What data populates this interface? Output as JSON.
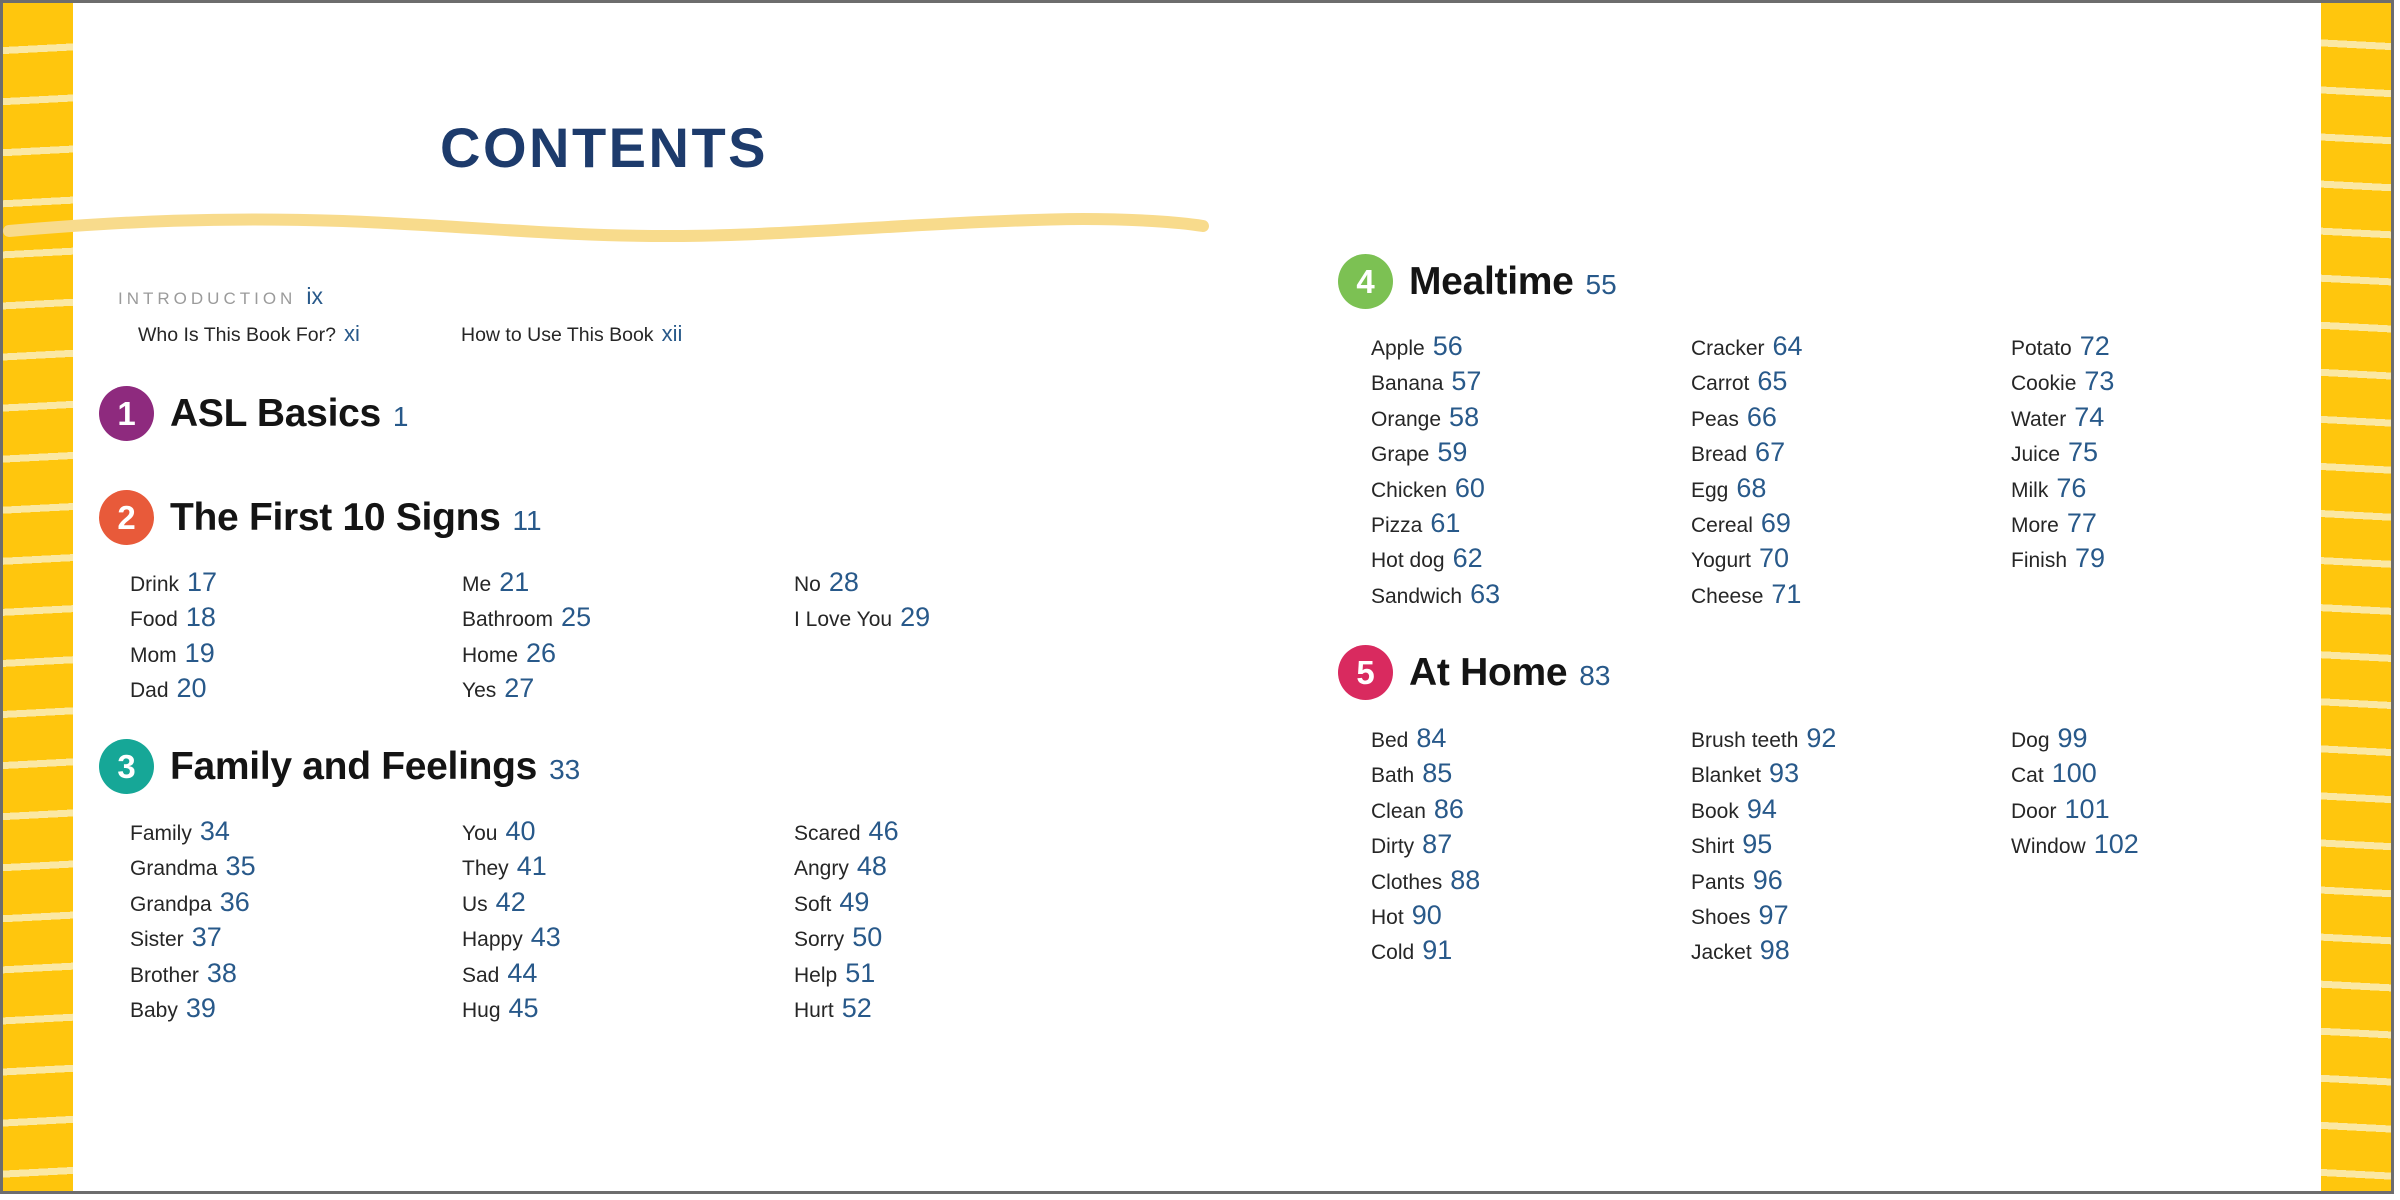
{
  "title": "CONTENTS",
  "intro": {
    "label": "INTRODUCTION",
    "page": "ix",
    "links": [
      {
        "label": "Who Is This Book For?",
        "page": "xi"
      },
      {
        "label": "How to Use This Book",
        "page": "xii"
      }
    ]
  },
  "chapters": [
    {
      "num": "1",
      "title": "ASL Basics",
      "page": "1",
      "color": "#8e2a7e",
      "columns": []
    },
    {
      "num": "2",
      "title": "The First 10 Signs",
      "page": "11",
      "color": "#e85a3a",
      "columns": [
        [
          {
            "label": "Drink",
            "page": "17"
          },
          {
            "label": "Food",
            "page": "18"
          },
          {
            "label": "Mom",
            "page": "19"
          },
          {
            "label": "Dad",
            "page": "20"
          }
        ],
        [
          {
            "label": "Me",
            "page": "21"
          },
          {
            "label": "Bathroom",
            "page": "25"
          },
          {
            "label": "Home",
            "page": "26"
          },
          {
            "label": "Yes",
            "page": "27"
          }
        ],
        [
          {
            "label": "No",
            "page": "28"
          },
          {
            "label": "I Love You",
            "page": "29"
          }
        ]
      ]
    },
    {
      "num": "3",
      "title": "Family and Feelings",
      "page": "33",
      "color": "#16a797",
      "columns": [
        [
          {
            "label": "Family",
            "page": "34"
          },
          {
            "label": "Grandma",
            "page": "35"
          },
          {
            "label": "Grandpa",
            "page": "36"
          },
          {
            "label": "Sister",
            "page": "37"
          },
          {
            "label": "Brother",
            "page": "38"
          },
          {
            "label": "Baby",
            "page": "39"
          }
        ],
        [
          {
            "label": "You",
            "page": "40"
          },
          {
            "label": "They",
            "page": "41"
          },
          {
            "label": "Us",
            "page": "42"
          },
          {
            "label": "Happy",
            "page": "43"
          },
          {
            "label": "Sad",
            "page": "44"
          },
          {
            "label": "Hug",
            "page": "45"
          }
        ],
        [
          {
            "label": "Scared",
            "page": "46"
          },
          {
            "label": "Angry",
            "page": "48"
          },
          {
            "label": "Soft",
            "page": "49"
          },
          {
            "label": "Sorry",
            "page": "50"
          },
          {
            "label": "Help",
            "page": "51"
          },
          {
            "label": "Hurt",
            "page": "52"
          }
        ]
      ]
    },
    {
      "num": "4",
      "title": "Mealtime",
      "page": "55",
      "color": "#7cc153",
      "columns": [
        [
          {
            "label": "Apple",
            "page": "56"
          },
          {
            "label": "Banana",
            "page": "57"
          },
          {
            "label": "Orange",
            "page": "58"
          },
          {
            "label": "Grape",
            "page": "59"
          },
          {
            "label": "Chicken",
            "page": "60"
          },
          {
            "label": "Pizza",
            "page": "61"
          },
          {
            "label": "Hot dog",
            "page": "62"
          },
          {
            "label": "Sandwich",
            "page": "63"
          }
        ],
        [
          {
            "label": "Cracker",
            "page": "64"
          },
          {
            "label": "Carrot",
            "page": "65"
          },
          {
            "label": "Peas",
            "page": "66"
          },
          {
            "label": "Bread",
            "page": "67"
          },
          {
            "label": "Egg",
            "page": "68"
          },
          {
            "label": "Cereal",
            "page": "69"
          },
          {
            "label": "Yogurt",
            "page": "70"
          },
          {
            "label": "Cheese",
            "page": "71"
          }
        ],
        [
          {
            "label": "Potato",
            "page": "72"
          },
          {
            "label": "Cookie",
            "page": "73"
          },
          {
            "label": "Water",
            "page": "74"
          },
          {
            "label": "Juice",
            "page": "75"
          },
          {
            "label": "Milk",
            "page": "76"
          },
          {
            "label": "More",
            "page": "77"
          },
          {
            "label": "Finish",
            "page": "79"
          }
        ]
      ]
    },
    {
      "num": "5",
      "title": "At Home",
      "page": "83",
      "color": "#d92a5f",
      "columns": [
        [
          {
            "label": "Bed",
            "page": "84"
          },
          {
            "label": "Bath",
            "page": "85"
          },
          {
            "label": "Clean",
            "page": "86"
          },
          {
            "label": "Dirty",
            "page": "87"
          },
          {
            "label": "Clothes",
            "page": "88"
          },
          {
            "label": "Hot",
            "page": "90"
          },
          {
            "label": "Cold",
            "page": "91"
          }
        ],
        [
          {
            "label": "Brush teeth",
            "page": "92"
          },
          {
            "label": "Blanket",
            "page": "93"
          },
          {
            "label": "Book",
            "page": "94"
          },
          {
            "label": "Shirt",
            "page": "95"
          },
          {
            "label": "Pants",
            "page": "96"
          },
          {
            "label": "Shoes",
            "page": "97"
          },
          {
            "label": "Jacket",
            "page": "98"
          }
        ],
        [
          {
            "label": "Dog",
            "page": "99"
          },
          {
            "label": "Cat",
            "page": "100"
          },
          {
            "label": "Door",
            "page": "101"
          },
          {
            "label": "Window",
            "page": "102"
          }
        ]
      ]
    }
  ],
  "colors": {
    "title": "#1d3b6c",
    "page_number": "#28598a",
    "body_text": "#262626",
    "border_yellow": "#ffc60d",
    "border_stripe": "#fbe8a3",
    "wave_underline": "#f8db8c",
    "intro_gray": "#9b9b9b"
  }
}
